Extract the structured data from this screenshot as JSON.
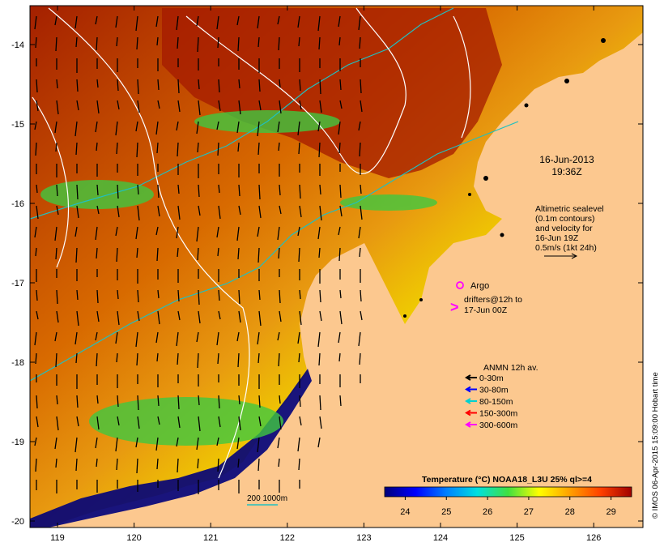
{
  "map": {
    "date": "16-Jun-2013",
    "time": "19:36Z",
    "altimetry_lines": [
      "Altimetric sealevel",
      "(0.1m contours)",
      "and velocity for",
      "16-Jun 19Z",
      "0.5m/s (1kt 24h)"
    ],
    "argo_label": "Argo",
    "drifters_lines": [
      "drifters@12h to",
      "17-Jun 00Z"
    ],
    "anmn_title": "ANMN 12h av.",
    "anmn_legend": [
      {
        "label": "0-30m",
        "color": "#000000"
      },
      {
        "label": "30-80m",
        "color": "#0000ff"
      },
      {
        "label": "80-150m",
        "color": "#00d0d0"
      },
      {
        "label": "150-300m",
        "color": "#ff0000"
      },
      {
        "label": "300-600m",
        "color": "#ff00ff"
      }
    ],
    "colorbar_title": "Temperature (°C) NOAA18_L3U 25% ql>=4",
    "colorbar_ticks": [
      "24",
      "25",
      "26",
      "27",
      "28",
      "29"
    ],
    "colorbar_range": [
      23.5,
      29.5
    ],
    "colorbar_stops": [
      "#00007a",
      "#0000ff",
      "#0080ff",
      "#00e0e0",
      "#40e040",
      "#ffff00",
      "#ffa000",
      "#ff4000",
      "#a00000"
    ],
    "bathy_label": "200  1000m",
    "credit": "© IMOS 06-Apr-2015 15:09:00 Hobart time",
    "x_ticks": [
      "119",
      "120",
      "121",
      "122",
      "123",
      "124",
      "125",
      "126"
    ],
    "y_ticks": [
      "-14",
      "-15",
      "-16",
      "-17",
      "-18",
      "-19",
      "-20"
    ],
    "colors": {
      "land": "#fcc88f",
      "argo": "#ff00ff",
      "drifter": "#ff00ff",
      "contour": "#ffffff",
      "isobath": "#20c0c0"
    }
  }
}
